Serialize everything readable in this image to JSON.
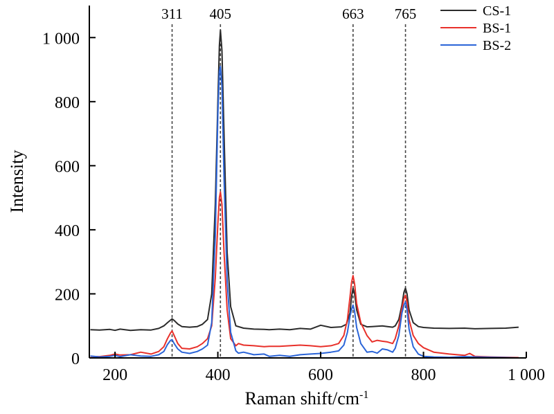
{
  "chart_data": {
    "type": "line",
    "title": "",
    "xlabel": "Raman shift/cm",
    "xlabel_sup": "-1",
    "ylabel": "Intensity",
    "xlim": [
      150,
      1000
    ],
    "ylim": [
      0,
      1100
    ],
    "xticks": [
      200,
      400,
      600,
      800,
      1000
    ],
    "xtick_labels": [
      "200",
      "400",
      "600",
      "800",
      "1 000"
    ],
    "yticks": [
      0,
      200,
      400,
      600,
      800,
      1000
    ],
    "ytick_labels": [
      "0",
      "200",
      "400",
      "600",
      "800",
      "1 000"
    ],
    "grid": false,
    "legend_position": "top-right",
    "peak_markers": [
      {
        "x": 311,
        "label": "311"
      },
      {
        "x": 405,
        "label": "405"
      },
      {
        "x": 663,
        "label": "663"
      },
      {
        "x": 765,
        "label": "765"
      }
    ],
    "series": [
      {
        "name": "CS-1",
        "color": "#2b2b2b",
        "x": [
          152,
          170,
          190,
          200,
          210,
          230,
          250,
          270,
          285,
          295,
          302,
          308,
          311,
          315,
          322,
          330,
          345,
          360,
          370,
          380,
          388,
          395,
          400,
          403,
          405,
          408,
          412,
          418,
          425,
          435,
          450,
          470,
          490,
          500,
          520,
          540,
          560,
          580,
          600,
          620,
          640,
          650,
          657,
          660,
          663,
          666,
          670,
          678,
          690,
          700,
          710,
          720,
          730,
          740,
          745,
          752,
          758,
          762,
          765,
          768,
          772,
          780,
          790,
          800,
          820,
          850,
          880,
          900,
          930,
          960,
          985
        ],
        "y": [
          88,
          87,
          89,
          86,
          90,
          86,
          88,
          87,
          92,
          100,
          110,
          118,
          122,
          117,
          106,
          98,
          96,
          98,
          105,
          120,
          200,
          480,
          800,
          975,
          1023,
          960,
          700,
          330,
          160,
          100,
          93,
          90,
          89,
          88,
          90,
          88,
          92,
          90,
          102,
          95,
          97,
          105,
          140,
          190,
          218,
          200,
          150,
          105,
          97,
          98,
          99,
          100,
          98,
          96,
          100,
          120,
          165,
          205,
          218,
          200,
          150,
          110,
          98,
          95,
          93,
          92,
          93,
          91,
          92,
          93,
          96
        ]
      },
      {
        "name": "BS-1",
        "color": "#e8302a",
        "x": [
          152,
          170,
          190,
          200,
          210,
          230,
          250,
          270,
          285,
          295,
          302,
          308,
          311,
          315,
          322,
          330,
          345,
          360,
          370,
          380,
          388,
          395,
          400,
          403,
          405,
          408,
          412,
          418,
          425,
          435,
          440,
          450,
          470,
          490,
          500,
          520,
          540,
          560,
          580,
          600,
          620,
          635,
          645,
          652,
          657,
          660,
          663,
          666,
          670,
          678,
          690,
          700,
          710,
          720,
          730,
          740,
          745,
          752,
          758,
          762,
          765,
          768,
          772,
          780,
          790,
          800,
          820,
          850,
          880,
          890,
          900,
          930,
          960,
          985
        ],
        "y": [
          5,
          4,
          8,
          12,
          9,
          10,
          18,
          12,
          20,
          35,
          60,
          78,
          84,
          70,
          45,
          30,
          28,
          35,
          45,
          60,
          100,
          250,
          420,
          500,
          518,
          480,
          330,
          150,
          60,
          38,
          45,
          40,
          38,
          35,
          36,
          36,
          38,
          40,
          38,
          35,
          38,
          45,
          70,
          120,
          190,
          235,
          257,
          230,
          170,
          110,
          70,
          50,
          55,
          52,
          50,
          45,
          60,
          100,
          155,
          185,
          196,
          175,
          120,
          70,
          45,
          32,
          18,
          12,
          8,
          14,
          5,
          3,
          2,
          1
        ]
      },
      {
        "name": "BS-2",
        "color": "#2a64d8",
        "x": [
          152,
          170,
          190,
          200,
          210,
          230,
          250,
          270,
          285,
          295,
          302,
          308,
          311,
          315,
          322,
          330,
          345,
          360,
          370,
          380,
          388,
          395,
          400,
          403,
          405,
          408,
          412,
          418,
          425,
          435,
          440,
          450,
          470,
          490,
          500,
          520,
          540,
          560,
          580,
          600,
          620,
          635,
          645,
          652,
          657,
          660,
          663,
          666,
          670,
          678,
          690,
          700,
          710,
          720,
          730,
          740,
          745,
          752,
          758,
          762,
          765,
          768,
          772,
          780,
          790,
          800,
          820,
          850,
          880,
          900,
          930,
          960,
          985
        ],
        "y": [
          6,
          3,
          5,
          8,
          4,
          10,
          6,
          5,
          10,
          20,
          42,
          55,
          57,
          45,
          28,
          18,
          14,
          20,
          28,
          40,
          110,
          380,
          760,
          895,
          910,
          850,
          560,
          240,
          80,
          22,
          15,
          18,
          10,
          12,
          5,
          8,
          5,
          10,
          12,
          14,
          18,
          22,
          40,
          80,
          130,
          150,
          165,
          145,
          95,
          45,
          18,
          20,
          15,
          28,
          25,
          18,
          30,
          70,
          140,
          165,
          175,
          150,
          90,
          35,
          12,
          5,
          3,
          2,
          4,
          3,
          2,
          1,
          0
        ]
      }
    ]
  }
}
